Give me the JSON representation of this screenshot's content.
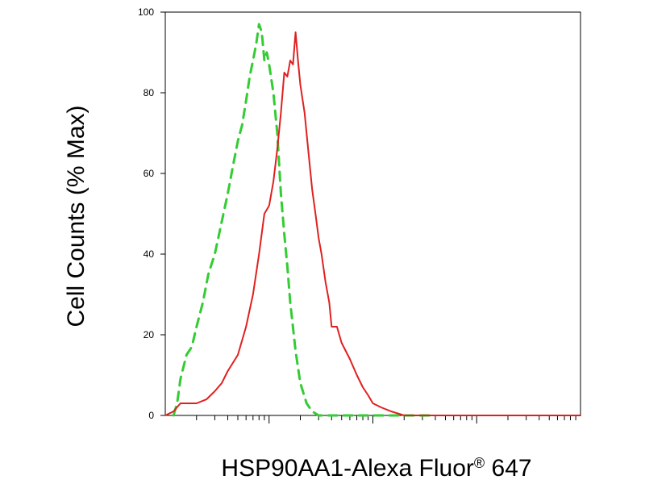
{
  "chart_data": {
    "type": "line",
    "title": "",
    "xlabel": "HSP90AA1-Alexa Fluor",
    "xlabel_mark": "®",
    "xlabel_suffix": " 647",
    "ylabel": "Cell Counts (% Max)",
    "xscale": "log",
    "xlim": [
      1,
      10000
    ],
    "ylim": [
      0,
      100
    ],
    "yticks": [
      0,
      20,
      40,
      60,
      80,
      100
    ],
    "ytick_labels": [
      "0",
      "20",
      "40",
      "60",
      "80",
      "100"
    ],
    "grid": false,
    "legend": "none",
    "series": [
      {
        "style": "dashed",
        "color": "#33cc33",
        "x": [
          1.2,
          1.3,
          1.4,
          1.6,
          1.8,
          2.0,
          2.3,
          2.6,
          3.0,
          3.5,
          4.0,
          4.5,
          5.0,
          5.5,
          6.0,
          6.5,
          7.0,
          7.5,
          8.0,
          8.5,
          9.0,
          9.5,
          10.0,
          11.0,
          12.0,
          13.0,
          14.0,
          15.0,
          16.0,
          18.0,
          20.0,
          23.0,
          26.0,
          30.0,
          35.0,
          40.0,
          50.0,
          100.0,
          200.0,
          400.0
        ],
        "y": [
          0,
          3,
          9,
          15,
          17,
          22,
          28,
          35,
          40,
          48,
          55,
          62,
          68,
          72,
          78,
          84,
          88,
          92,
          97,
          95,
          88,
          90,
          87,
          80,
          70,
          55,
          45,
          37,
          28,
          16,
          8,
          3,
          1,
          0,
          0,
          0,
          0,
          0,
          0,
          0
        ]
      },
      {
        "style": "solid",
        "color": "#e02020",
        "x": [
          1.0,
          1.2,
          1.4,
          1.7,
          2.0,
          2.5,
          3.0,
          3.5,
          4.0,
          5.0,
          6.0,
          7.0,
          8.0,
          9.0,
          10.0,
          11.0,
          12.0,
          13.0,
          14.0,
          15.0,
          16.0,
          17.0,
          18.0,
          19.0,
          20.0,
          22.0,
          24.0,
          26.0,
          28.0,
          30.0,
          32.0,
          35.0,
          38.0,
          40.0,
          45.0,
          50.0,
          60.0,
          70.0,
          80.0,
          90.0,
          100.0,
          120.0,
          150.0,
          200.0,
          300.0,
          500.0,
          1000.0,
          2000.0,
          5000.0,
          10000.0
        ],
        "y": [
          0,
          1,
          3,
          3,
          3,
          4,
          6,
          8,
          11,
          15,
          22,
          30,
          40,
          50,
          52,
          58,
          66,
          75,
          85,
          84,
          88,
          87,
          95,
          88,
          82,
          75,
          65,
          56,
          50,
          44,
          40,
          33,
          28,
          22,
          22,
          18,
          14,
          10,
          7,
          5,
          3,
          2,
          1,
          0,
          0,
          0,
          0,
          0,
          0,
          0
        ]
      }
    ]
  }
}
